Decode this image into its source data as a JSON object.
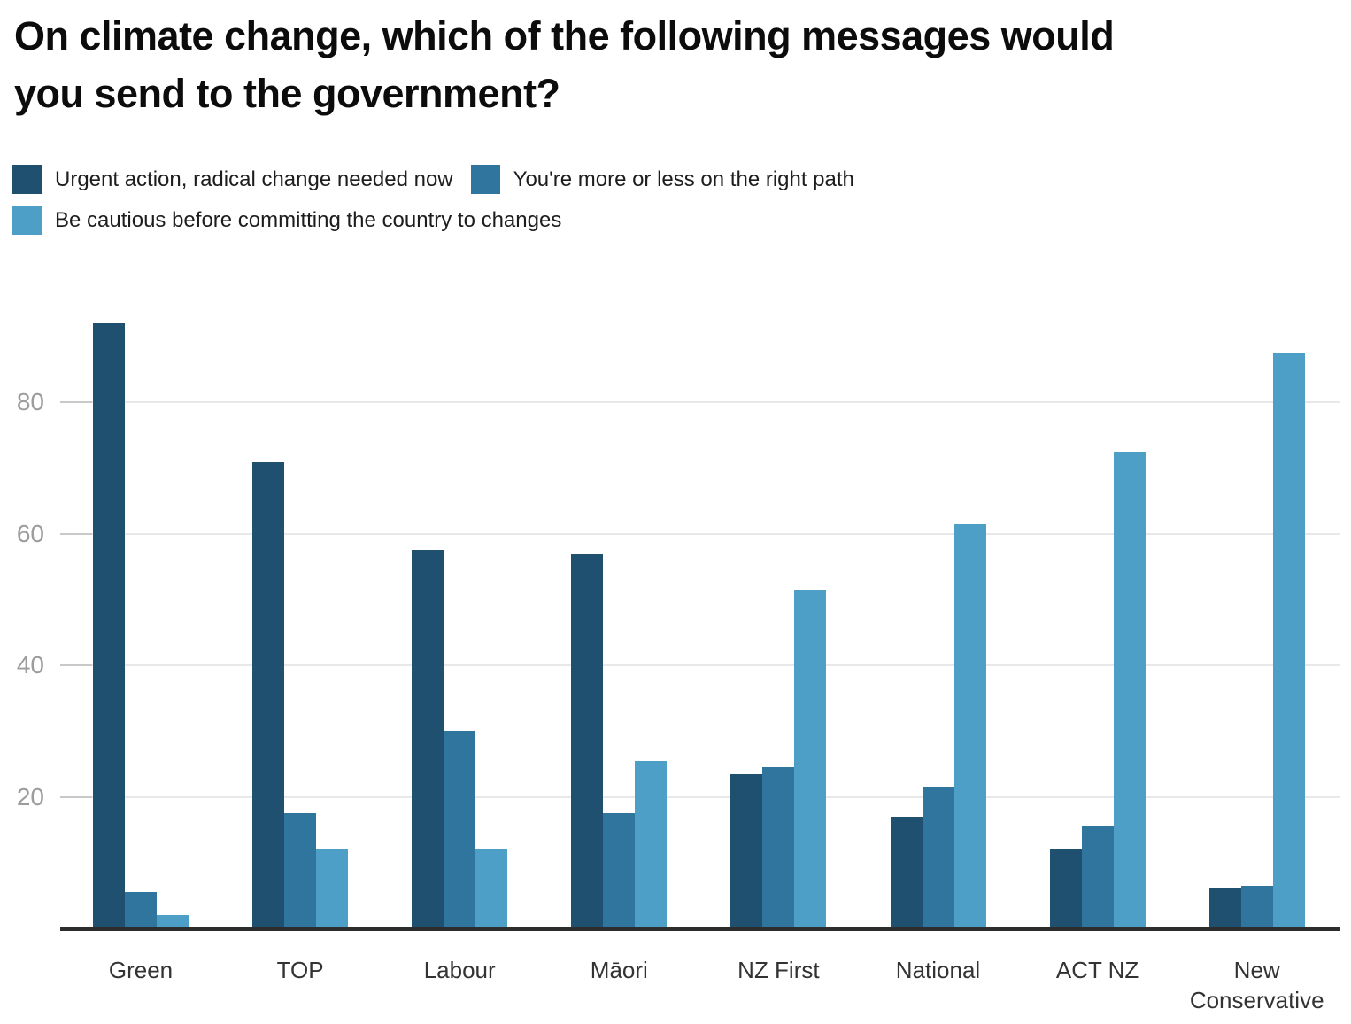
{
  "title": {
    "lines": [
      "On climate change, which of the following messages would",
      "you send to the government?"
    ]
  },
  "chart_data": {
    "type": "bar",
    "title": "On climate change, which of the following messages would you send to the government?",
    "categories": [
      "Green",
      "TOP",
      "Labour",
      "Māori",
      "NZ First",
      "National",
      "ACT NZ",
      "New Conservative"
    ],
    "series": [
      {
        "name": "Urgent action, radical change needed now",
        "color": "#205070",
        "values": [
          92,
          71,
          57.5,
          57,
          23.5,
          17,
          12,
          6
        ]
      },
      {
        "name": "You're more or less on the right path",
        "color": "#30759e",
        "values": [
          5.5,
          17.5,
          30,
          17.5,
          24.5,
          21.5,
          15.5,
          6.5
        ]
      },
      {
        "name": "Be cautious before committing the country to changes",
        "color": "#4d9fc8",
        "values": [
          2,
          12,
          12,
          25.5,
          51.5,
          61.5,
          72.5,
          87.5
        ]
      }
    ],
    "xlabel": "",
    "ylabel": "",
    "ylim": [
      0,
      95
    ],
    "yticks": [
      20,
      40,
      60,
      80
    ],
    "ytick_labels": [
      "20",
      "40",
      "60",
      "80"
    ],
    "grid": true,
    "legend_position": "top-left"
  }
}
